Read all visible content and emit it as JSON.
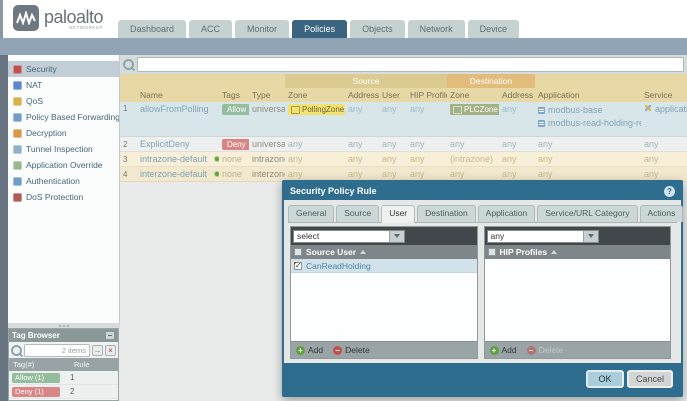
{
  "brand": {
    "name": "paloalto",
    "sub": "NETWORKS®"
  },
  "nav": {
    "tabs": [
      {
        "label": "Dashboard",
        "active": false
      },
      {
        "label": "ACC",
        "active": false
      },
      {
        "label": "Monitor",
        "active": false
      },
      {
        "label": "Policies",
        "active": true
      },
      {
        "label": "Objects",
        "active": false
      },
      {
        "label": "Network",
        "active": false
      },
      {
        "label": "Device",
        "active": false
      }
    ]
  },
  "sidebar": {
    "items": [
      {
        "label": "Security",
        "icon": "security-icon",
        "selected": true
      },
      {
        "label": "NAT",
        "icon": "nat-icon",
        "selected": false
      },
      {
        "label": "QoS",
        "icon": "qos-icon",
        "selected": false
      },
      {
        "label": "Policy Based Forwarding",
        "icon": "policy-based-forwarding-icon",
        "selected": false
      },
      {
        "label": "Decryption",
        "icon": "decryption-icon",
        "selected": false
      },
      {
        "label": "Tunnel Inspection",
        "icon": "tunnel-inspection-icon",
        "selected": false
      },
      {
        "label": "Application Override",
        "icon": "application-override-icon",
        "selected": false
      },
      {
        "label": "Authentication",
        "icon": "authentication-icon",
        "selected": false
      },
      {
        "label": "DoS Protection",
        "icon": "dos-protection-icon",
        "selected": false
      }
    ]
  },
  "policy_table": {
    "search_value": "",
    "group_source": "Source",
    "group_destination": "Destination",
    "columns": [
      "",
      "Name",
      "Tags",
      "Type",
      "Zone",
      "Address",
      "User",
      "HIP Profile",
      "Zone",
      "Address",
      "Application",
      "Service"
    ],
    "rows": [
      {
        "num": "1",
        "name": "allowFromPolling",
        "status_dot": false,
        "tag": {
          "label": "Allow",
          "color": "#93bd9c"
        },
        "type": "universal",
        "src_zone": {
          "label": "PollingZone",
          "badge": "yellow"
        },
        "src_address": "any",
        "user": "any",
        "hip_profile": "any",
        "dst_zone": {
          "label": "PLCZone",
          "badge": "green"
        },
        "dst_address": "any",
        "applications": [
          "modbus-base",
          "modbus-read-holding-registers"
        ],
        "service": "application-default",
        "theme": "blue"
      },
      {
        "num": "2",
        "name": "ExplicitDeny",
        "status_dot": false,
        "tag": {
          "label": "Deny",
          "color": "#d88585"
        },
        "type": "universal",
        "src_zone": {
          "label": "any"
        },
        "src_address": "any",
        "user": "any",
        "hip_profile": "any",
        "dst_zone": {
          "label": "any"
        },
        "dst_address": "any",
        "applications": [
          "any"
        ],
        "service": "any",
        "theme": "grey"
      },
      {
        "num": "3",
        "name": "intrazone-default",
        "status_dot": true,
        "tag": {
          "label": "none"
        },
        "type": "intrazone",
        "src_zone": {
          "label": "any"
        },
        "src_address": "any",
        "user": "any",
        "hip_profile": "any",
        "dst_zone": {
          "label": "(intrazone)"
        },
        "dst_address": "any",
        "applications": [
          "any"
        ],
        "service": "any",
        "theme": "tan"
      },
      {
        "num": "4",
        "name": "interzone-default",
        "status_dot": true,
        "tag": {
          "label": "none"
        },
        "type": "interzone",
        "src_zone": {
          "label": "any"
        },
        "src_address": "any",
        "user": "any",
        "hip_profile": "any",
        "dst_zone": {
          "label": "any"
        },
        "dst_address": "any",
        "applications": [
          "any"
        ],
        "service": "any",
        "theme": "tan2"
      }
    ]
  },
  "dialog": {
    "title": "Security Policy Rule",
    "tabs": [
      {
        "label": "General",
        "active": false
      },
      {
        "label": "Source",
        "active": false
      },
      {
        "label": "User",
        "active": true
      },
      {
        "label": "Destination",
        "active": false
      },
      {
        "label": "Application",
        "active": false
      },
      {
        "label": "Service/URL Category",
        "active": false
      },
      {
        "label": "Actions",
        "active": false
      }
    ],
    "source_user_panel": {
      "dropdown_value": "select",
      "header": "Source User",
      "items": [
        {
          "label": "CanReadHolding",
          "checked": true
        }
      ],
      "add_label": "Add",
      "delete_label": "Delete",
      "delete_disabled": false
    },
    "hip_panel": {
      "dropdown_value": "any",
      "header": "HIP Profiles",
      "items": [],
      "add_label": "Add",
      "delete_label": "Delete",
      "delete_disabled": true
    },
    "ok_label": "OK",
    "cancel_label": "Cancel"
  },
  "tag_browser": {
    "title": "Tag Browser",
    "count": "2 items",
    "columns": [
      "Tag(#)",
      "Rule"
    ],
    "rows": [
      {
        "tag": "Allow (1)",
        "color": "#93bd9c",
        "rule": "1"
      },
      {
        "tag": "Deny (1)",
        "color": "#d88585",
        "rule": "2"
      }
    ]
  }
}
